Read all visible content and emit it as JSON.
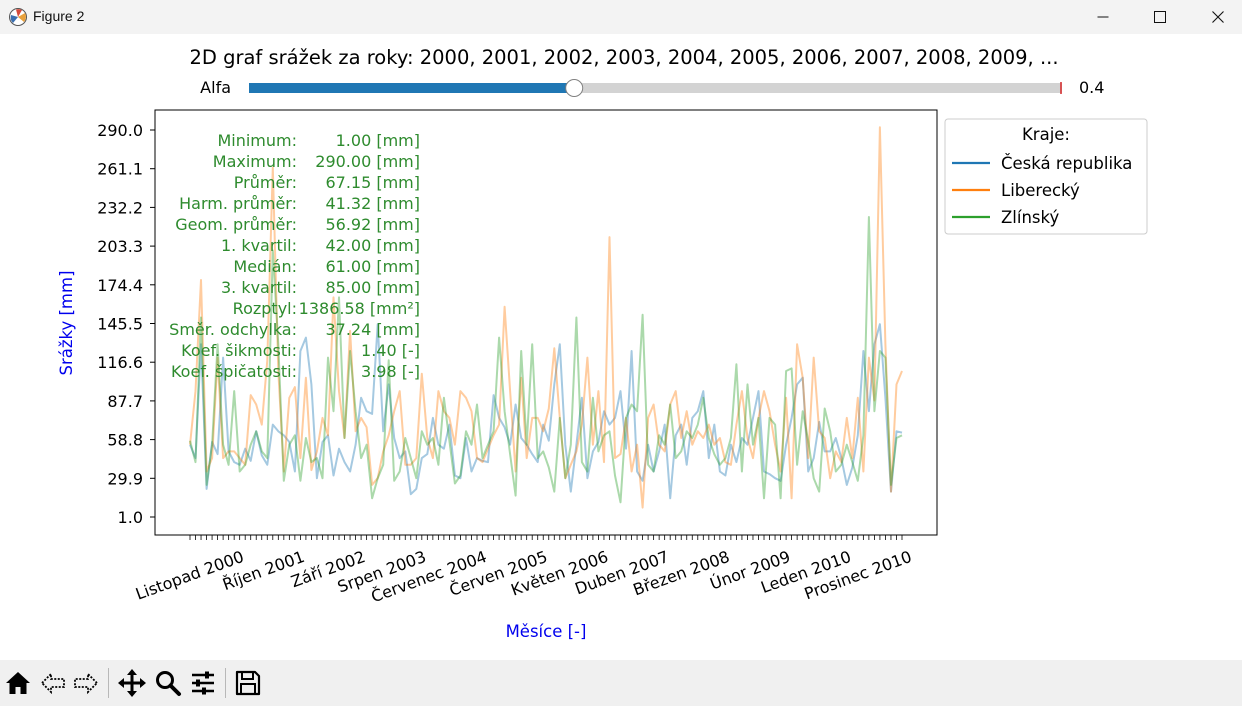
{
  "window": {
    "title": "Figure 2"
  },
  "figure": {
    "title": "2D graf srážek za roky: 2000, 2001, 2002, 2003, 2004, 2005, 2006, 2007, 2008, 2009, ...",
    "slider": {
      "label": "Alfa",
      "value_text": "0.4",
      "min": 0,
      "max": 1,
      "value": 0.4,
      "fill_color": "#1f77b4",
      "track_color": "#d3d3d3",
      "marker_color": "#d62728"
    },
    "stats": {
      "color": "#2e8b2e",
      "rows": [
        {
          "label": "Minimum:",
          "value": "1.00 [mm]"
        },
        {
          "label": "Maximum:",
          "value": "290.00 [mm]"
        },
        {
          "label": "Průměr:",
          "value": "67.15 [mm]"
        },
        {
          "label": "Harm. průměr:",
          "value": "41.32 [mm]"
        },
        {
          "label": "Geom. průměr:",
          "value": "56.92 [mm]"
        },
        {
          "label": "1. kvartil:",
          "value": "42.00 [mm]"
        },
        {
          "label": "Medián:",
          "value": "61.00 [mm]"
        },
        {
          "label": "3. kvartil:",
          "value": "85.00 [mm]"
        },
        {
          "label": "Rozptyl:",
          "value": "1386.58 [mm²]"
        },
        {
          "label": "Směr. odchylka:",
          "value": "37.24 [mm]"
        },
        {
          "label": "Koef. šikmosti:",
          "value": "1.40 [-]"
        },
        {
          "label": "Koef. špičatosti:",
          "value": "3.98 [-]"
        }
      ]
    },
    "legend": {
      "title": "Kraje:",
      "placement": "outside right, top"
    }
  },
  "toolbar": {
    "icons": [
      "home-icon",
      "back-icon",
      "forward-icon",
      "pan-icon",
      "zoom-icon",
      "configure-subplots-icon",
      "save-icon"
    ]
  },
  "chart_data": {
    "type": "line",
    "title": "2D graf srážek za roky: 2000, 2001, 2002, 2003, 2004, 2005, 2006, 2007, 2008, 2009, ...",
    "xlabel": "Měsíce [-]",
    "ylabel": "Srážky [mm]",
    "ylim": [
      1.0,
      290.0
    ],
    "yticks": [
      "1.0",
      "29.9",
      "58.8",
      "87.7",
      "116.6",
      "145.5",
      "174.4",
      "203.3",
      "232.2",
      "261.1",
      "290.0"
    ],
    "x_range": [
      "Listopad 2000",
      "Prosinec 2010"
    ],
    "xtick_labels": [
      {
        "month_index": 0,
        "label": "Listopad 2000"
      },
      {
        "month_index": 11,
        "label": "Říjen 2001"
      },
      {
        "month_index": 22,
        "label": "Září 2002"
      },
      {
        "month_index": 33,
        "label": "Srpen 2003"
      },
      {
        "month_index": 44,
        "label": "Červenec 2004"
      },
      {
        "month_index": 55,
        "label": "Červen 2005"
      },
      {
        "month_index": 66,
        "label": "Květen 2006"
      },
      {
        "month_index": 77,
        "label": "Duben 2007"
      },
      {
        "month_index": 88,
        "label": "Březen 2008"
      },
      {
        "month_index": 99,
        "label": "Únor 2009"
      },
      {
        "month_index": 110,
        "label": "Leden 2010"
      },
      {
        "month_index": 121,
        "label": "Prosinec 2010"
      }
    ],
    "line_alpha": 0.4,
    "grid": false,
    "legend_placement": "outside right",
    "series": [
      {
        "name": "Česká republika",
        "color": "#1f77b4",
        "values": [
          55,
          45,
          130,
          22,
          57,
          48,
          120,
          50,
          42,
          40,
          52,
          43,
          65,
          47,
          40,
          70,
          65,
          62,
          57,
          35,
          125,
          135,
          100,
          30,
          57,
          62,
          32,
          52,
          42,
          35,
          55,
          90,
          80,
          78,
          145,
          65,
          100,
          60,
          45,
          50,
          18,
          22,
          45,
          48,
          75,
          55,
          52,
          70,
          32,
          30,
          60,
          35,
          45,
          43,
          42,
          92,
          75,
          68,
          55,
          85,
          60,
          55,
          48,
          42,
          70,
          58,
          100,
          130,
          55,
          20,
          55,
          90,
          30,
          50,
          57,
          80,
          70,
          75,
          95,
          52,
          125,
          35,
          28,
          55,
          35,
          50,
          70,
          15,
          62,
          70,
          40,
          75,
          80,
          95,
          45,
          70,
          35,
          32,
          55,
          42,
          60,
          55,
          75,
          95,
          35,
          33,
          30,
          28,
          55,
          75,
          100,
          105,
          35,
          45,
          72,
          50,
          50,
          60,
          45,
          25,
          38,
          62,
          125,
          80,
          130,
          145,
          90,
          20,
          65,
          64
        ]
      },
      {
        "name": "Liberecký",
        "color": "#ff7f0e",
        "values": [
          55,
          95,
          178,
          35,
          45,
          120,
          45,
          50,
          50,
          45,
          40,
          92,
          85,
          70,
          118,
          262,
          110,
          35,
          90,
          98,
          45,
          105,
          36,
          50,
          75,
          62,
          165,
          95,
          60,
          140,
          65,
          75,
          68,
          25,
          30,
          50,
          62,
          80,
          95,
          40,
          40,
          45,
          108,
          60,
          45,
          95,
          80,
          75,
          55,
          95,
          90,
          80,
          45,
          42,
          52,
          62,
          70,
          158,
          95,
          35,
          105,
          45,
          75,
          75,
          65,
          82,
          127,
          75,
          30,
          40,
          50,
          70,
          120,
          55,
          95,
          42,
          210,
          45,
          48,
          75,
          35,
          55,
          8,
          75,
          85,
          55,
          50,
          85,
          95,
          60,
          80,
          55,
          65,
          60,
          70,
          55,
          60,
          42,
          40,
          70,
          95,
          60,
          45,
          75,
          95,
          80,
          55,
          35,
          90,
          15,
          130,
          105,
          45,
          120,
          65,
          60,
          30,
          50,
          42,
          75,
          45,
          90,
          35,
          120,
          88,
          292,
          130,
          20,
          100,
          110
        ]
      },
      {
        "name": "Zlínský",
        "color": "#2ca02c",
        "values": [
          58,
          42,
          150,
          25,
          55,
          130,
          55,
          40,
          95,
          35,
          40,
          55,
          65,
          50,
          45,
          200,
          130,
          28,
          55,
          62,
          28,
          60,
          42,
          45,
          30,
          120,
          80,
          165,
          60,
          125,
          80,
          45,
          55,
          15,
          30,
          40,
          118,
          28,
          35,
          60,
          45,
          30,
          65,
          55,
          60,
          40,
          90,
          58,
          26,
          32,
          65,
          55,
          85,
          45,
          55,
          65,
          135,
          80,
          48,
          17,
          125,
          55,
          130,
          45,
          50,
          38,
          20,
          75,
          30,
          55,
          150,
          42,
          35,
          90,
          50,
          62,
          65,
          32,
          12,
          75,
          85,
          80,
          152,
          40,
          35,
          62,
          55,
          85,
          45,
          50,
          65,
          60,
          70,
          90,
          60,
          48,
          40,
          45,
          60,
          115,
          35,
          100,
          55,
          75,
          15,
          75,
          70,
          15,
          110,
          112,
          40,
          80,
          58,
          30,
          20,
          82,
          65,
          35,
          40,
          55,
          42,
          28,
          62,
          225,
          80,
          125,
          120,
          25,
          60,
          62
        ]
      }
    ]
  }
}
